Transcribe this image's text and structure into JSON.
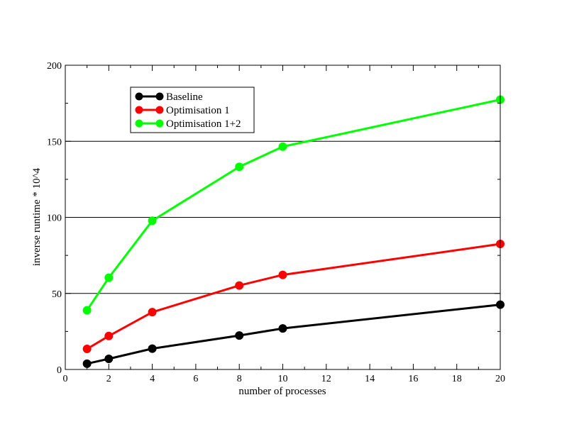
{
  "chart_data": {
    "type": "line",
    "title": "",
    "xlabel": "number of processes",
    "ylabel": "inverse runtime * 10^4",
    "xlim": [
      0,
      20
    ],
    "ylim": [
      0,
      200
    ],
    "xticks": [
      0,
      2,
      4,
      6,
      8,
      10,
      12,
      14,
      16,
      18,
      20
    ],
    "yticks": [
      0,
      50,
      100,
      150,
      200
    ],
    "xtick_labels": [
      "0",
      "2",
      "4",
      "6",
      "8",
      "10",
      "12",
      "14",
      "16",
      "18",
      "20"
    ],
    "ytick_labels": [
      "0",
      "50",
      "100",
      "150",
      "200"
    ],
    "grid": "horizontal",
    "legend_position": "top-left",
    "x": [
      1,
      2,
      4,
      8,
      10,
      20
    ],
    "series": [
      {
        "name": "Baseline",
        "color": "#000000",
        "values": [
          3.8,
          7.0,
          13.7,
          22.3,
          27.0,
          42.6
        ]
      },
      {
        "name": "Optimisation 1",
        "color": "#ff0000",
        "values": [
          13.5,
          22.0,
          37.7,
          55.2,
          62.2,
          82.5
        ]
      },
      {
        "name": "Optimisation 1+2",
        "color": "#00ff00",
        "values": [
          38.9,
          60.3,
          97.8,
          133.2,
          146.5,
          177.4
        ]
      }
    ]
  }
}
